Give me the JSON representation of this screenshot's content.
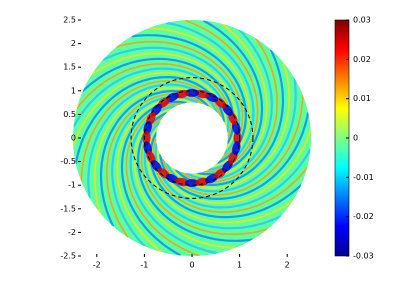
{
  "chart_data": {
    "type": "field",
    "xlim": [
      -2.5,
      2.5
    ],
    "ylim": [
      -2.5,
      2.5
    ],
    "xticks": [
      -2,
      -1,
      0,
      1,
      2
    ],
    "yticks": [
      -2.5,
      -2,
      -1.5,
      -1,
      -0.5,
      0,
      0.5,
      1,
      1.5,
      2,
      2.5
    ],
    "domain_radii": [
      0.75,
      2.5
    ],
    "dashed_circles": [
      1.0,
      1.28
    ],
    "colorbar": {
      "clim": [
        -0.03,
        0.03
      ],
      "ticks": [
        -0.03,
        -0.02,
        -0.01,
        0,
        0.01,
        0.02,
        0.03
      ],
      "colormap": "jet"
    }
  }
}
